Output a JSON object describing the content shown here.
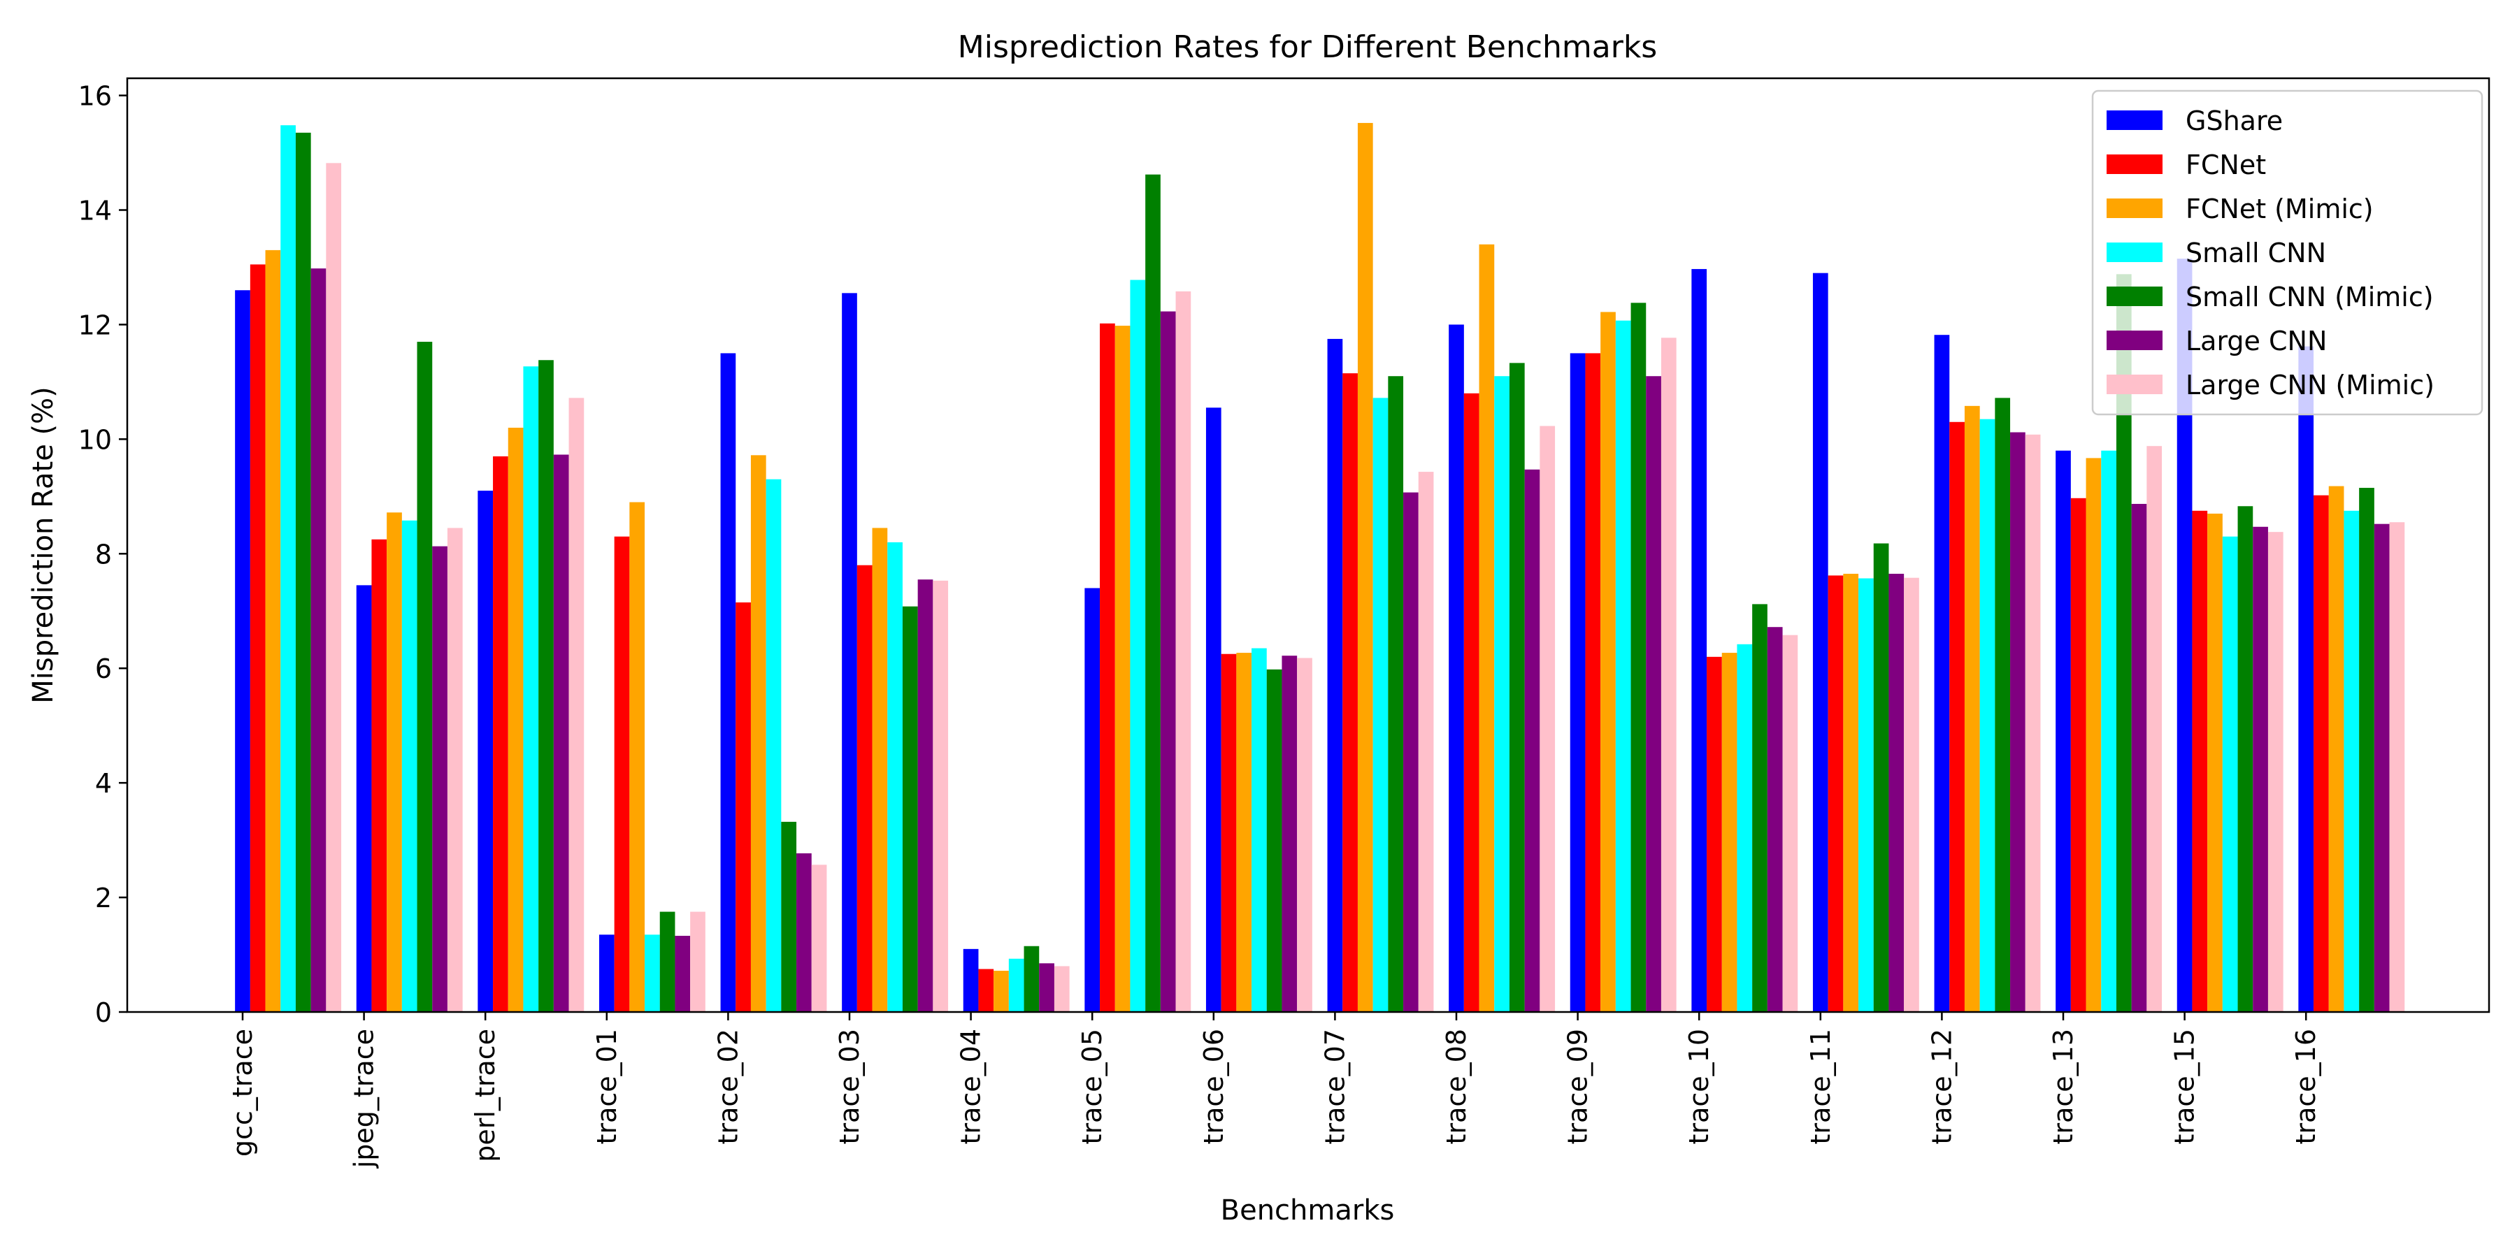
{
  "chart_data": {
    "type": "bar",
    "title": "Misprediction Rates for Different Benchmarks",
    "xlabel": "Benchmarks",
    "ylabel": "Misprediction Rate (%)",
    "ylim": [
      0,
      16.3
    ],
    "yticks": [
      0,
      2,
      4,
      6,
      8,
      10,
      12,
      14,
      16
    ],
    "grid": false,
    "legend_position": "top-right",
    "categories": [
      "gcc_trace",
      "jpeg_trace",
      "perl_trace",
      "trace_01",
      "trace_02",
      "trace_03",
      "trace_04",
      "trace_05",
      "trace_06",
      "trace_07",
      "trace_08",
      "trace_09",
      "trace_10",
      "trace_11",
      "trace_12",
      "trace_13",
      "trace_15",
      "trace_16"
    ],
    "series": [
      {
        "name": "GShare",
        "color": "#0000ff",
        "values": [
          12.6,
          7.45,
          9.1,
          1.35,
          11.5,
          12.55,
          1.1,
          7.4,
          10.55,
          11.75,
          12.0,
          11.5,
          12.97,
          12.9,
          11.82,
          9.8,
          13.15,
          11.62
        ]
      },
      {
        "name": "FCNet",
        "color": "#ff0000",
        "values": [
          13.05,
          8.25,
          9.7,
          8.3,
          7.15,
          7.8,
          0.75,
          12.02,
          6.25,
          11.15,
          10.8,
          11.5,
          6.2,
          7.62,
          10.3,
          8.97,
          8.75,
          9.02
        ]
      },
      {
        "name": "FCNet (Mimic)",
        "color": "#ffa500",
        "values": [
          13.3,
          8.72,
          10.2,
          8.9,
          9.72,
          8.45,
          0.72,
          11.98,
          6.27,
          15.52,
          13.4,
          12.22,
          6.27,
          7.65,
          10.58,
          9.67,
          8.7,
          9.18
        ]
      },
      {
        "name": "Small CNN",
        "color": "#00ffff",
        "values": [
          15.48,
          8.58,
          11.27,
          1.35,
          9.3,
          8.2,
          0.93,
          12.78,
          6.35,
          10.72,
          11.1,
          12.07,
          6.42,
          7.57,
          10.35,
          9.8,
          8.3,
          8.75
        ]
      },
      {
        "name": "Small CNN (Mimic)",
        "color": "#008000",
        "values": [
          15.35,
          11.7,
          11.38,
          1.75,
          3.32,
          7.08,
          1.15,
          14.62,
          5.98,
          11.1,
          11.33,
          12.38,
          7.12,
          8.18,
          10.72,
          12.88,
          8.83,
          9.15
        ]
      },
      {
        "name": "Large CNN",
        "color": "#800080",
        "values": [
          12.98,
          8.13,
          9.73,
          1.33,
          2.77,
          7.55,
          0.85,
          12.23,
          6.22,
          9.07,
          9.47,
          11.1,
          6.72,
          7.65,
          10.12,
          8.87,
          8.47,
          8.52
        ]
      },
      {
        "name": "Large CNN (Mimic)",
        "color": "#ffc0cb",
        "values": [
          14.82,
          8.45,
          10.72,
          1.75,
          2.57,
          7.53,
          0.8,
          12.58,
          6.18,
          9.43,
          10.23,
          11.77,
          6.58,
          7.58,
          10.08,
          9.88,
          8.38,
          8.55
        ]
      }
    ]
  }
}
